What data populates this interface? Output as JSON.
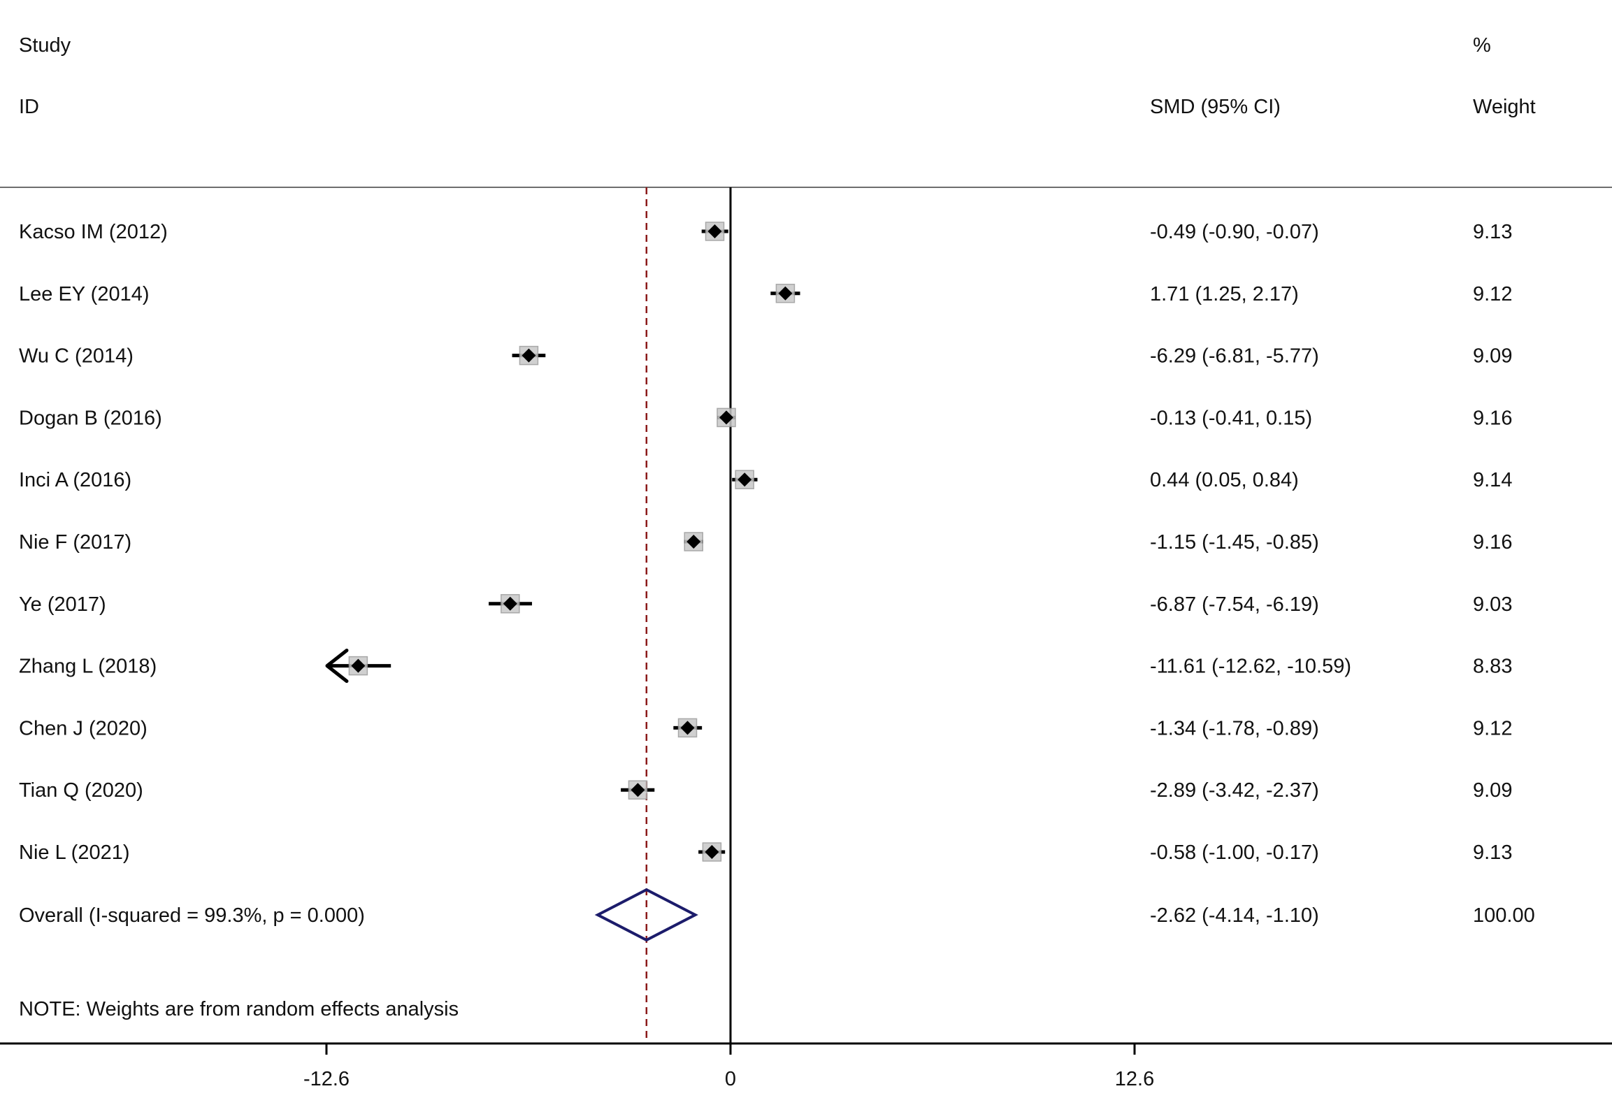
{
  "header": {
    "study_label": "Study",
    "id_label": "ID",
    "smd_label": "SMD (95% CI)",
    "pct_label": "%",
    "weight_label": "Weight"
  },
  "note": "NOTE: Weights are from random effects analysis",
  "chart_data": {
    "type": "forest",
    "measure": "SMD (95% CI)",
    "xlim": [
      -18.5,
      27.0
    ],
    "xticks": [
      {
        "value": -12.6,
        "label": "-12.6"
      },
      {
        "value": 0,
        "label": "0"
      },
      {
        "value": 12.6,
        "label": "12.6"
      }
    ],
    "reference_line": 0,
    "studies": [
      {
        "id": "Kacso IM (2012)",
        "smd": -0.49,
        "lo": -0.9,
        "hi": -0.07,
        "ci_text": "-0.49 (-0.90, -0.07)",
        "weight": "9.13"
      },
      {
        "id": "Lee EY (2014)",
        "smd": 1.71,
        "lo": 1.25,
        "hi": 2.17,
        "ci_text": "1.71 (1.25, 2.17)",
        "weight": "9.12"
      },
      {
        "id": "Wu C (2014)",
        "smd": -6.29,
        "lo": -6.81,
        "hi": -5.77,
        "ci_text": "-6.29 (-6.81, -5.77)",
        "weight": "9.09"
      },
      {
        "id": "Dogan B (2016)",
        "smd": -0.13,
        "lo": -0.41,
        "hi": 0.15,
        "ci_text": "-0.13 (-0.41, 0.15)",
        "weight": "9.16"
      },
      {
        "id": "Inci A (2016)",
        "smd": 0.44,
        "lo": 0.05,
        "hi": 0.84,
        "ci_text": "0.44 (0.05, 0.84)",
        "weight": "9.14"
      },
      {
        "id": "Nie F (2017)",
        "smd": -1.15,
        "lo": -1.45,
        "hi": -0.85,
        "ci_text": "-1.15 (-1.45, -0.85)",
        "weight": "9.16"
      },
      {
        "id": "Ye (2017)",
        "smd": -6.87,
        "lo": -7.54,
        "hi": -6.19,
        "ci_text": "-6.87 (-7.54, -6.19)",
        "weight": "9.03"
      },
      {
        "id": "Zhang L (2018)",
        "smd": -11.61,
        "lo": -12.62,
        "hi": -10.59,
        "ci_text": "-11.61 (-12.62, -10.59)",
        "weight": "8.83",
        "ci_clipped_left": true
      },
      {
        "id": "Chen J (2020)",
        "smd": -1.34,
        "lo": -1.78,
        "hi": -0.89,
        "ci_text": "-1.34 (-1.78, -0.89)",
        "weight": "9.12"
      },
      {
        "id": "Tian Q (2020)",
        "smd": -2.89,
        "lo": -3.42,
        "hi": -2.37,
        "ci_text": "-2.89 (-3.42, -2.37)",
        "weight": "9.09"
      },
      {
        "id": "Nie L (2021)",
        "smd": -0.58,
        "lo": -1.0,
        "hi": -0.17,
        "ci_text": "-0.58 (-1.00, -0.17)",
        "weight": "9.13"
      }
    ],
    "overall": {
      "id": "Overall  (I-squared = 99.3%, p = 0.000)",
      "smd": -2.62,
      "lo": -4.14,
      "hi": -1.1,
      "ci_text": "-2.62 (-4.14, -1.10)",
      "weight": "100.00"
    },
    "colors": {
      "point": "#000000",
      "marker_halo": "#9a9a9a",
      "overall_diamond": "#1c1c6b",
      "overall_line": "#8b1a1a"
    }
  }
}
